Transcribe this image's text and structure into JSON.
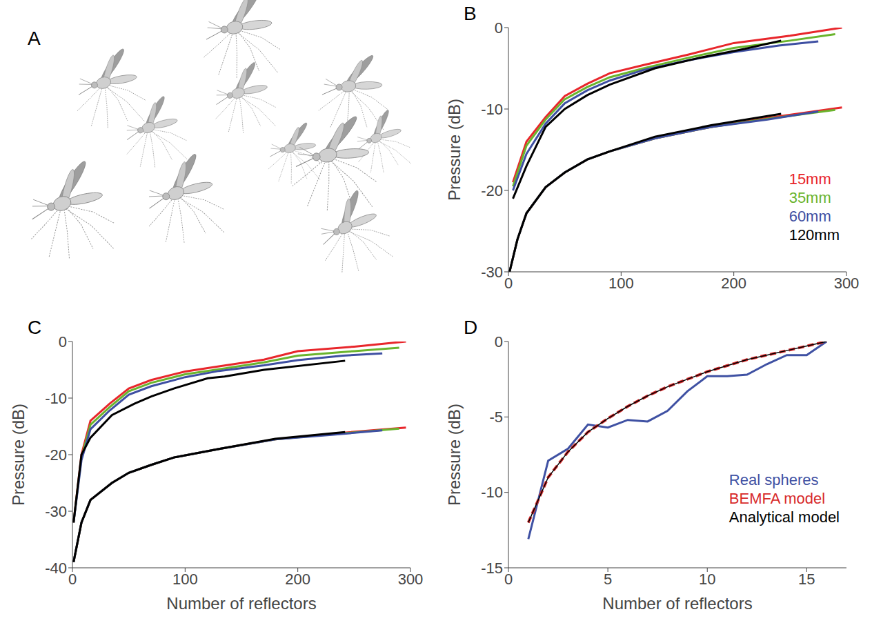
{
  "chart_data": [
    {
      "panel": "A",
      "type": "image"
    },
    {
      "panel": "B",
      "type": "line",
      "y_label": "Pressure (dB)",
      "xlim": [
        0,
        300
      ],
      "xticks": [
        0,
        100,
        200,
        300
      ],
      "ylim": [
        -30,
        0
      ],
      "yticks": [
        -30,
        -20,
        -10,
        0
      ],
      "legend": "lower right",
      "series": [
        {
          "name": "15mm",
          "color": "#e8262b",
          "x": [
            4,
            16,
            33,
            50,
            70,
            90,
            120,
            160,
            200,
            250,
            296
          ],
          "values": [
            -19,
            -14,
            -11,
            -8.4,
            -6.9,
            -5.6,
            -4.6,
            -3.3,
            -1.9,
            -1,
            0
          ]
        },
        {
          "name": "35mm",
          "color": "#6ab42d",
          "x": [
            4,
            16,
            33,
            50,
            70,
            90,
            120,
            160,
            200,
            250,
            290
          ],
          "values": [
            -19.5,
            -14.5,
            -11.3,
            -8.8,
            -7.3,
            -6.1,
            -5,
            -3.7,
            -2.5,
            -1.6,
            -0.8
          ]
        },
        {
          "name": "60mm",
          "color": "#3e4fa2",
          "x": [
            4,
            16,
            33,
            50,
            70,
            90,
            120,
            160,
            200,
            240,
            275
          ],
          "values": [
            -20,
            -15.5,
            -11.8,
            -9.3,
            -7.7,
            -6.5,
            -5.2,
            -4,
            -3,
            -2.2,
            -1.7
          ]
        },
        {
          "name": "120mm",
          "color": "#000000",
          "x": [
            4,
            16,
            33,
            50,
            70,
            90,
            130,
            170,
            210,
            242
          ],
          "values": [
            -21,
            -17,
            -12.2,
            -10,
            -8.3,
            -7,
            -5,
            -3.7,
            -2.6,
            -1.6
          ]
        },
        {
          "name": "15mm",
          "color": "#e8262b",
          "x": [
            1,
            8,
            16,
            33,
            50,
            70,
            90,
            130,
            180,
            230,
            296
          ],
          "values": [
            -30,
            -26,
            -22.8,
            -19.6,
            -17.8,
            -16.2,
            -15.2,
            -13.6,
            -12.2,
            -11.1,
            -9.8
          ]
        },
        {
          "name": "35mm",
          "color": "#6ab42d",
          "x": [
            1,
            8,
            16,
            33,
            50,
            70,
            90,
            130,
            180,
            230,
            290
          ],
          "values": [
            -30,
            -26,
            -22.8,
            -19.6,
            -17.8,
            -16.2,
            -15.2,
            -13.6,
            -12.2,
            -11.2,
            -10.1
          ]
        },
        {
          "name": "60mm",
          "color": "#3e4fa2",
          "x": [
            1,
            8,
            16,
            33,
            50,
            70,
            90,
            130,
            180,
            230,
            275
          ],
          "values": [
            -30,
            -26,
            -22.8,
            -19.6,
            -17.8,
            -16.2,
            -15.2,
            -13.6,
            -12.2,
            -11.3,
            -10.3
          ]
        },
        {
          "name": "120mm",
          "color": "#000000",
          "x": [
            1,
            8,
            16,
            33,
            50,
            70,
            90,
            130,
            180,
            242
          ],
          "values": [
            -30,
            -26,
            -22.8,
            -19.6,
            -17.8,
            -16.2,
            -15.2,
            -13.4,
            -12,
            -10.6
          ]
        }
      ]
    },
    {
      "panel": "C",
      "type": "line",
      "x_label": "Number of reflectors",
      "y_label": "Pressure (dB)",
      "xlim": [
        0,
        300
      ],
      "xticks": [
        0,
        100,
        200,
        300
      ],
      "ylim": [
        -40,
        0
      ],
      "yticks": [
        -40,
        -30,
        -20,
        -10,
        0
      ],
      "series": [
        {
          "name": "15mm",
          "color": "#e8262b",
          "x": [
            1,
            8,
            16,
            33,
            50,
            70,
            100,
            130,
            170,
            200,
            250,
            296
          ],
          "values": [
            -32,
            -20,
            -14,
            -11,
            -8.3,
            -6.8,
            -5.3,
            -4.4,
            -3.2,
            -1.7,
            -0.9,
            0
          ]
        },
        {
          "name": "35mm",
          "color": "#6ab42d",
          "x": [
            1,
            8,
            16,
            33,
            50,
            70,
            100,
            130,
            170,
            200,
            250,
            290
          ],
          "values": [
            -32,
            -20.5,
            -14.7,
            -11.6,
            -8.8,
            -7.3,
            -5.8,
            -4.9,
            -3.7,
            -2.5,
            -1.7,
            -1.1
          ]
        },
        {
          "name": "60mm",
          "color": "#3e4fa2",
          "x": [
            1,
            8,
            16,
            33,
            50,
            70,
            100,
            130,
            170,
            200,
            240,
            275
          ],
          "values": [
            -32,
            -21,
            -15.5,
            -12.2,
            -9.4,
            -7.9,
            -6.3,
            -5.2,
            -4.2,
            -3.3,
            -2.5,
            -2.1
          ]
        },
        {
          "name": "120mm",
          "color": "#000000",
          "x": [
            1,
            8,
            16,
            35,
            55,
            70,
            90,
            120,
            135,
            170,
            242
          ],
          "values": [
            -32,
            -20,
            -17,
            -13,
            -11,
            -9.7,
            -8.3,
            -6.5,
            -6.2,
            -5,
            -3.4
          ]
        },
        {
          "name": "15mm",
          "color": "#e8262b",
          "x": [
            1,
            8,
            16,
            35,
            50,
            70,
            90,
            130,
            180,
            230,
            296
          ],
          "values": [
            -39,
            -32,
            -28,
            -25,
            -23.2,
            -21.8,
            -20.5,
            -19,
            -17.3,
            -16.3,
            -15.2
          ]
        },
        {
          "name": "35mm",
          "color": "#6ab42d",
          "x": [
            1,
            8,
            16,
            35,
            50,
            70,
            90,
            130,
            180,
            230,
            290
          ],
          "values": [
            -39,
            -32,
            -28,
            -25,
            -23.2,
            -21.8,
            -20.5,
            -19,
            -17.3,
            -16.4,
            -15.4
          ]
        },
        {
          "name": "60mm",
          "color": "#3e4fa2",
          "x": [
            1,
            8,
            16,
            35,
            50,
            70,
            90,
            130,
            180,
            230,
            275
          ],
          "values": [
            -39,
            -32,
            -28,
            -25,
            -23.2,
            -21.8,
            -20.5,
            -19,
            -17.3,
            -16.5,
            -15.7
          ]
        },
        {
          "name": "120mm",
          "color": "#000000",
          "x": [
            1,
            8,
            16,
            35,
            50,
            70,
            90,
            130,
            180,
            242
          ],
          "values": [
            -39,
            -32,
            -28,
            -25,
            -23.2,
            -21.8,
            -20.5,
            -19,
            -17.2,
            -16
          ]
        }
      ]
    },
    {
      "panel": "D",
      "type": "line",
      "x_label": "Number of reflectors",
      "y_label": "Pressure (dB)",
      "xlim": [
        0,
        17
      ],
      "xticks": [
        0,
        5,
        10,
        15
      ],
      "ylim": [
        -15,
        0
      ],
      "yticks": [
        -15,
        -10,
        -5,
        0
      ],
      "legend": "lower right",
      "series": [
        {
          "name": "Real spheres",
          "color": "#3f51a3",
          "line_style": "solid",
          "x": [
            1,
            2,
            3,
            4,
            5,
            6,
            7,
            8,
            9,
            10,
            11,
            12,
            13,
            14,
            15,
            16
          ],
          "values": [
            -13.1,
            -7.9,
            -7.1,
            -5.5,
            -5.7,
            -5.2,
            -5.3,
            -4.6,
            -3.3,
            -2.3,
            -2.3,
            -2.2,
            -1.5,
            -0.9,
            -0.9,
            0
          ]
        },
        {
          "name": "BEMFA model",
          "color": "#d7292b",
          "line_style": "dashed",
          "x": [
            1,
            2,
            3,
            4,
            5,
            6,
            7,
            8,
            9,
            10,
            11,
            12,
            13,
            14,
            15,
            16
          ],
          "values": [
            -12,
            -9,
            -7.3,
            -6,
            -5.1,
            -4.3,
            -3.6,
            -3,
            -2.5,
            -2,
            -1.6,
            -1.2,
            -0.9,
            -0.6,
            -0.3,
            0
          ]
        },
        {
          "name": "Analytical model",
          "color": "#000000",
          "line_style": "solid",
          "x": [
            1,
            2,
            3,
            4,
            5,
            6,
            7,
            8,
            9,
            10,
            11,
            12,
            13,
            14,
            15,
            16
          ],
          "values": [
            -12,
            -9,
            -7.3,
            -6,
            -5.1,
            -4.3,
            -3.6,
            -3,
            -2.5,
            -2,
            -1.6,
            -1.2,
            -0.9,
            -0.6,
            -0.3,
            0
          ]
        }
      ]
    }
  ]
}
